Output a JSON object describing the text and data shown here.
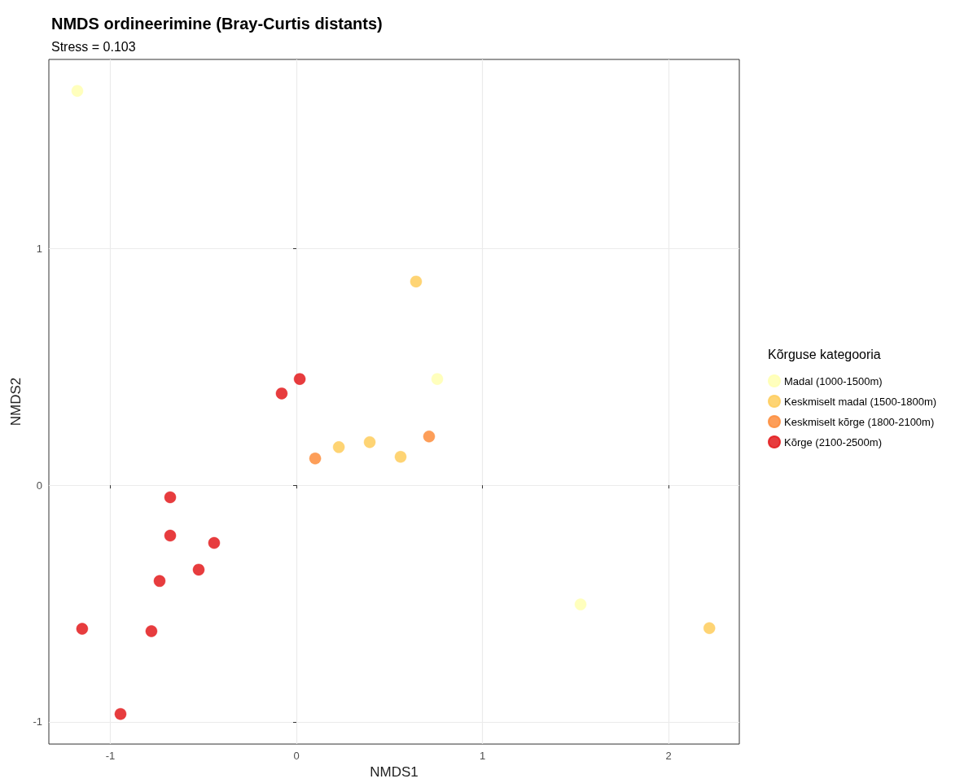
{
  "chart_data": {
    "type": "scatter",
    "title": "NMDS ordineerimine (Bray-Curtis distants)",
    "subtitle": "Stress = 0.103",
    "xlabel": "NMDS1",
    "ylabel": "NMDS2",
    "legend_title": "Kõrguse kategooria",
    "legend": "right",
    "grid": true,
    "marker": "circle",
    "xlim": [
      -1.33,
      2.38
    ],
    "xticks": [
      -1,
      0,
      1,
      2
    ],
    "ylim": [
      -1.094,
      1.8
    ],
    "yticks": [
      -1,
      0,
      1
    ],
    "series": [
      {
        "name": "Madal (1000-1500m)",
        "color": "#ffffb2",
        "x": [
          -1.177,
          0.757,
          1.527
        ],
        "values": [
          1.667,
          0.449,
          -0.504
        ]
      },
      {
        "name": "Keskmiselt madal (1500-1800m)",
        "color": "#fecc5c",
        "x": [
          0.643,
          0.228,
          0.394,
          0.56,
          2.219
        ],
        "values": [
          0.861,
          0.161,
          0.182,
          0.12,
          -0.604
        ]
      },
      {
        "name": "Keskmiselt kõrge (1800-2100m)",
        "color": "#fd8d3c",
        "x": [
          0.101,
          0.713
        ],
        "values": [
          0.113,
          0.206
        ]
      },
      {
        "name": "Kõrge (2100-2500m)",
        "color": "#e31a1c",
        "x": [
          0.018,
          -0.079,
          -0.678,
          -0.678,
          -0.442,
          -0.525,
          -0.735,
          -1.151,
          -0.779,
          -0.945
        ],
        "values": [
          0.449,
          0.388,
          -0.051,
          -0.213,
          -0.244,
          -0.357,
          -0.405,
          -0.607,
          -0.617,
          -0.967
        ]
      }
    ]
  }
}
